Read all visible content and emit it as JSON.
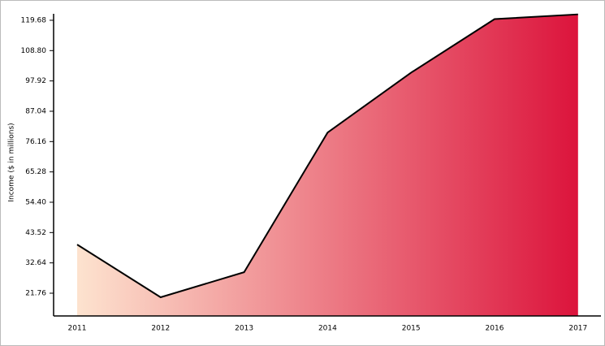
{
  "chart_data": {
    "type": "area",
    "y_label": "Income ($ in millions)",
    "categories": [
      "2011",
      "2012",
      "2013",
      "2014",
      "2015",
      "2016",
      "2017"
    ],
    "values": [
      39.2,
      20.3,
      29.3,
      79.4,
      100.9,
      120.1,
      121.8
    ],
    "line_color": "#000000",
    "gradient": [
      "#fde3cf",
      "#dc143c"
    ],
    "ylim": [
      13.6,
      122
    ],
    "yticks": [
      21.76,
      32.64,
      43.52,
      {
        "value": 54.4,
        "label": "54.40"
      },
      65.28,
      76.16,
      87.04,
      97.92,
      {
        "value": 108.8,
        "label": "108.80"
      },
      119.68
    ]
  }
}
